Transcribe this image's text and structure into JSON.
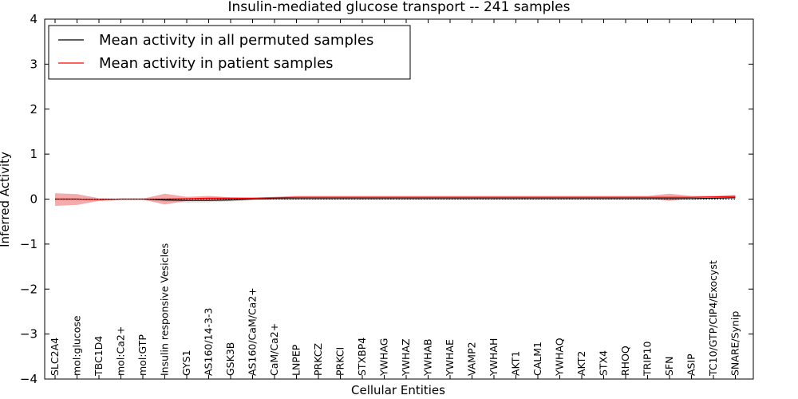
{
  "chart_data": {
    "type": "line",
    "title": "Insulin-mediated glucose transport -- 241 samples",
    "xlabel": "Cellular Entities",
    "ylabel": "Inferred Activity",
    "ylim": [
      -4,
      4
    ],
    "yticks": [
      "−4",
      "−3",
      "−2",
      "−1",
      "0",
      "1",
      "2",
      "3",
      "4"
    ],
    "ytick_values": [
      -4,
      -3,
      -2,
      -1,
      0,
      1,
      2,
      3,
      4
    ],
    "legend_position": "top-left",
    "categories": [
      "SLC2A4",
      "mol:glucose",
      "TBC1D4",
      "mol:Ca2+",
      "mol:GTP",
      "Insulin responsive Vesicles",
      "GYS1",
      "AS160/14-3-3",
      "GSK3B",
      "AS160/CaM/Ca2+",
      "CaM/Ca2+",
      "LNPEP",
      "PRKCZ",
      "PRKCI",
      "STXBP4",
      "YWHAG",
      "YWHAZ",
      "YWHAB",
      "YWHAE",
      "VAMP2",
      "YWHAH",
      "AKT1",
      "CALM1",
      "YWHAQ",
      "AKT2",
      "STX4",
      "RHOQ",
      "TRIP10",
      "SFN",
      "ASIP",
      "TC10/GTP/CIP4/Exocyst",
      "SNARE/Synip"
    ],
    "series": [
      {
        "name": "Mean activity in all permuted samples",
        "color": "#000000",
        "band_color": "#cccccc",
        "values": [
          0.0,
          0.0,
          -0.01,
          0.0,
          0.0,
          -0.02,
          -0.03,
          -0.03,
          -0.02,
          0.0,
          0.01,
          0.01,
          0.01,
          0.01,
          0.01,
          0.01,
          0.01,
          0.01,
          0.01,
          0.01,
          0.01,
          0.01,
          0.01,
          0.01,
          0.01,
          0.01,
          0.01,
          0.01,
          0.01,
          0.01,
          0.02,
          0.03
        ],
        "lower": [
          0.0,
          0.0,
          -0.02,
          -0.01,
          -0.01,
          -0.06,
          -0.08,
          -0.07,
          -0.05,
          -0.02,
          0.0,
          0.0,
          0.0,
          0.0,
          0.0,
          0.0,
          0.0,
          0.0,
          0.0,
          0.0,
          0.0,
          0.0,
          0.0,
          0.0,
          0.0,
          0.0,
          0.0,
          0.0,
          0.0,
          0.0,
          0.0,
          0.01
        ],
        "upper": [
          0.0,
          0.0,
          0.0,
          0.01,
          0.01,
          0.02,
          0.02,
          0.01,
          0.01,
          0.01,
          0.02,
          0.02,
          0.02,
          0.02,
          0.02,
          0.02,
          0.02,
          0.02,
          0.02,
          0.02,
          0.02,
          0.02,
          0.02,
          0.02,
          0.02,
          0.02,
          0.02,
          0.02,
          0.02,
          0.02,
          0.03,
          0.05
        ]
      },
      {
        "name": "Mean activity in patient samples",
        "color": "#ff0000",
        "band_color": "#ee8888",
        "values": [
          0.0,
          0.0,
          -0.01,
          0.0,
          0.0,
          0.0,
          0.01,
          0.02,
          0.02,
          0.02,
          0.03,
          0.04,
          0.04,
          0.04,
          0.04,
          0.04,
          0.04,
          0.04,
          0.04,
          0.04,
          0.04,
          0.04,
          0.04,
          0.04,
          0.04,
          0.04,
          0.04,
          0.04,
          0.04,
          0.04,
          0.05,
          0.06
        ],
        "lower": [
          -0.15,
          -0.13,
          -0.04,
          -0.01,
          -0.01,
          -0.12,
          -0.04,
          -0.03,
          -0.01,
          0.0,
          0.01,
          0.02,
          0.02,
          0.02,
          0.02,
          0.02,
          0.02,
          0.02,
          0.02,
          0.02,
          0.02,
          0.02,
          0.02,
          0.02,
          0.02,
          0.02,
          0.02,
          0.02,
          -0.04,
          0.02,
          0.03,
          0.04
        ],
        "upper": [
          0.13,
          0.11,
          0.02,
          0.01,
          0.01,
          0.12,
          0.05,
          0.07,
          0.04,
          0.03,
          0.05,
          0.07,
          0.07,
          0.07,
          0.07,
          0.07,
          0.07,
          0.07,
          0.07,
          0.07,
          0.07,
          0.07,
          0.07,
          0.07,
          0.07,
          0.07,
          0.07,
          0.07,
          0.12,
          0.07,
          0.07,
          0.09
        ]
      }
    ]
  }
}
